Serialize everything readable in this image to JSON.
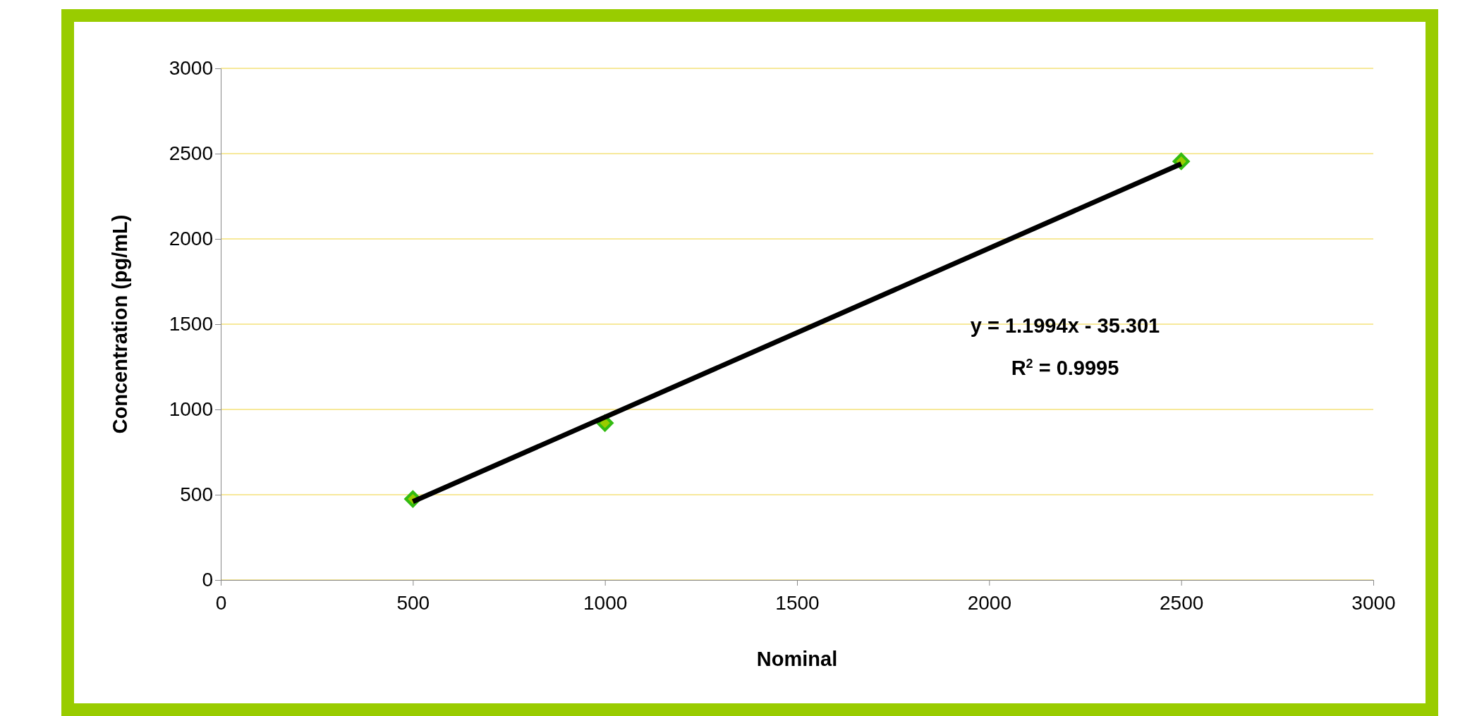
{
  "chart_data": {
    "type": "scatter",
    "xlabel": "Nominal",
    "ylabel": "Concentration (pg/mL)",
    "xlim": [
      0,
      3000
    ],
    "xticks": [
      0,
      500,
      1000,
      1500,
      2000,
      2500,
      3000
    ],
    "ylim": [
      0,
      3000
    ],
    "yticks": [
      0,
      500,
      1000,
      1500,
      2000,
      2500,
      3000
    ],
    "grid": "y",
    "marker": "diamond",
    "series": [
      {
        "color": "#33bb11",
        "x": [
          500,
          1000,
          2500
        ],
        "values": [
          475,
          920,
          2455
        ]
      },
      {
        "type": "line",
        "color": "#000000",
        "x": [
          500,
          2500
        ],
        "values": [
          460,
          2440
        ],
        "marker": "none"
      }
    ],
    "annotations": [
      "y = 1.1994x - 35.301",
      "R$^{2}$ = 0.9995"
    ]
  }
}
